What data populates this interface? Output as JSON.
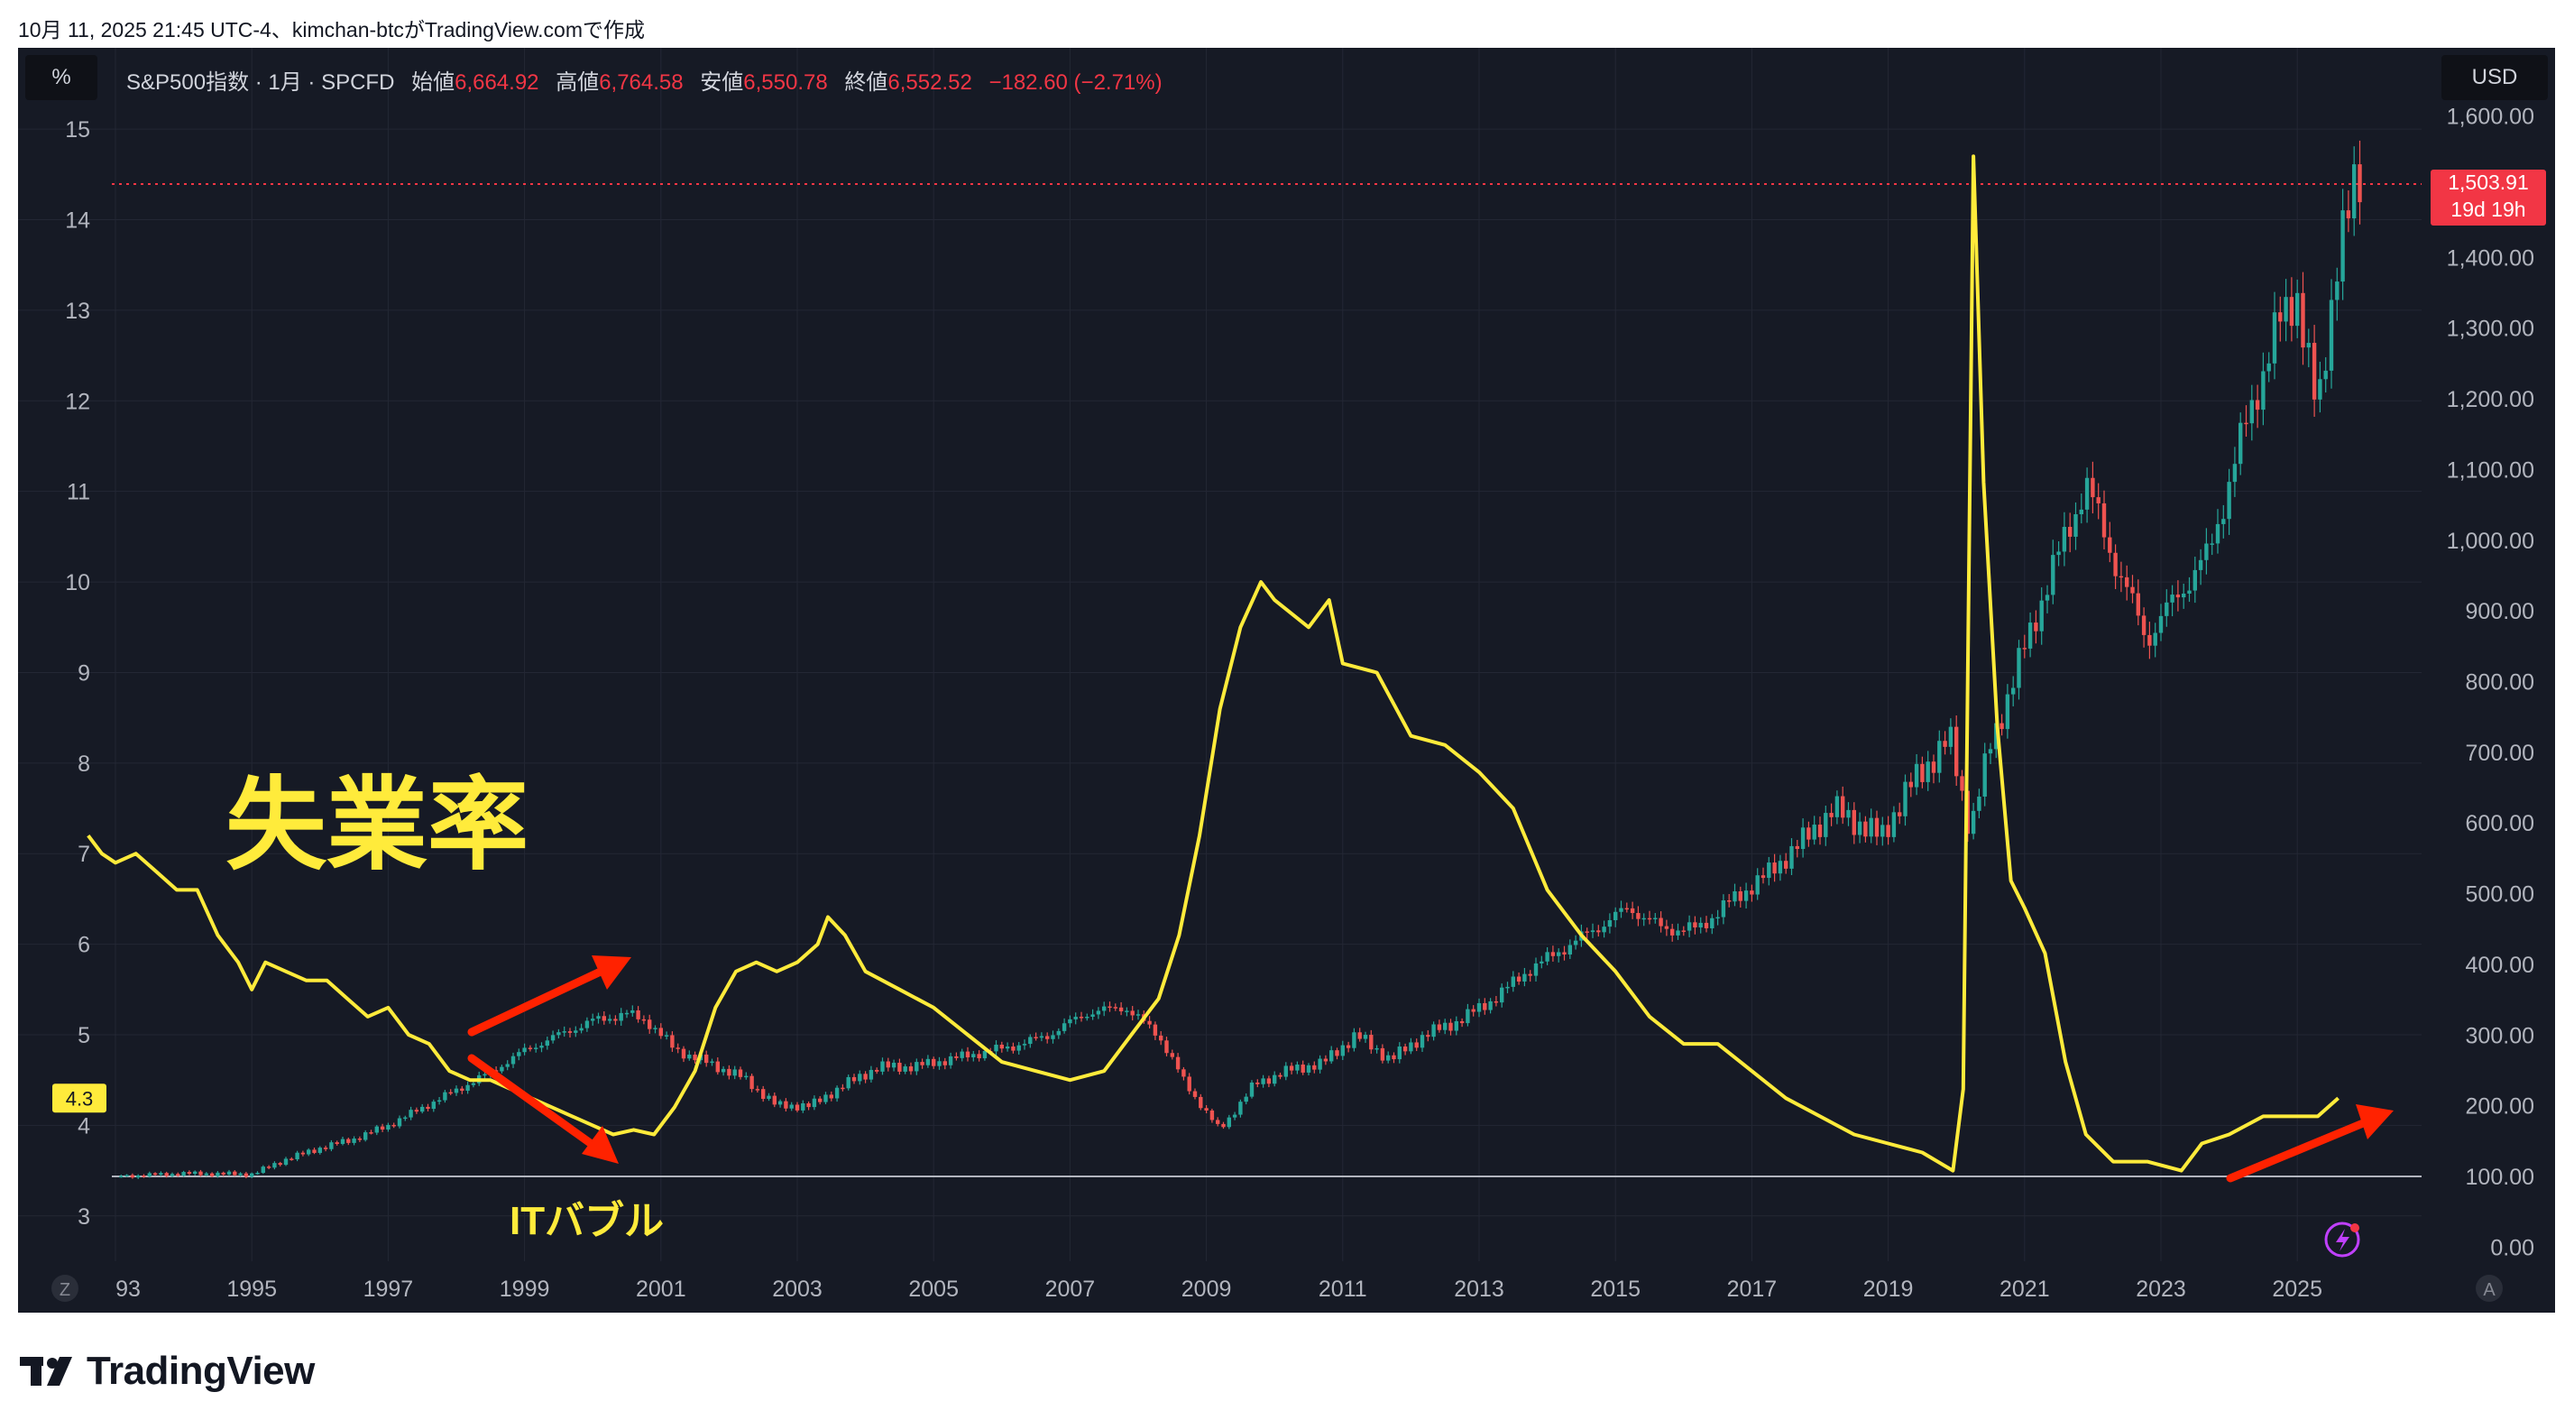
{
  "caption": "10月 11, 2025 21:45 UTC-4、kimchan-btcがTradingView.comで作成",
  "left_scale_button": "%",
  "right_scale_button": "USD",
  "legend": {
    "symbol": "S&P500指数 · 1月 · SPCFD",
    "open_label": "始値",
    "open_value": "6,664.92",
    "high_label": "高値",
    "high_value": "6,764.58",
    "low_label": "安値",
    "low_value": "6,550.78",
    "close_label": "終値",
    "close_value": "6,552.52",
    "change": "−182.60 (−2.71%)"
  },
  "price_badge": {
    "value": "1,503.91",
    "countdown": "19d 19h"
  },
  "unemployment_badge": "4.3",
  "annotations": {
    "unemployment_title": "失業率",
    "it_bubble": "ITバブル"
  },
  "corner_labels": {
    "left": "Z",
    "right": "A"
  },
  "logo_text": "TradingView",
  "colors": {
    "background": "#161a25",
    "unemployment_line": "#ffeb3b",
    "candle_up": "#26a69a",
    "candle_down": "#ef5350",
    "arrow": "#ff2200"
  },
  "icons": {
    "brand": "tradingview-logo-icon",
    "lightning": "lightning-icon"
  },
  "chart_data": {
    "type": "line",
    "x_ticks": [
      "93",
      "1995",
      "1997",
      "1999",
      "2001",
      "2003",
      "2005",
      "2007",
      "2009",
      "2011",
      "2013",
      "2015",
      "2017",
      "2019",
      "2021",
      "2023",
      "2025"
    ],
    "x_tick_years": [
      1993,
      1995,
      1997,
      1999,
      2001,
      2003,
      2005,
      2007,
      2009,
      2011,
      2013,
      2015,
      2017,
      2019,
      2021,
      2023,
      2025
    ],
    "left_axis": {
      "unit": "%",
      "ticks": [
        "3",
        "4",
        "5",
        "6",
        "7",
        "8",
        "9",
        "10",
        "11",
        "12",
        "13",
        "14",
        "15"
      ],
      "range": [
        2.5,
        15.3
      ]
    },
    "right_axis": {
      "unit": "USD",
      "ticks": [
        "0.00",
        "100.00",
        "200.00",
        "300.00",
        "400.00",
        "500.00",
        "600.00",
        "700.00",
        "800.00",
        "900.00",
        "1,000.00",
        "1,100.00",
        "1,200.00",
        "1,300.00",
        "1,400.00",
        "1,500.00",
        "1,600.00"
      ],
      "range": [
        -20,
        1620
      ]
    },
    "baseline_value": 100,
    "last_price": 1503.91,
    "series": [
      {
        "name": "失業率",
        "axis": "left",
        "points": [
          [
            1992.6,
            7.2
          ],
          [
            1992.8,
            7.0
          ],
          [
            1993.0,
            6.9
          ],
          [
            1993.3,
            7.0
          ],
          [
            1993.6,
            6.8
          ],
          [
            1993.9,
            6.6
          ],
          [
            1994.2,
            6.6
          ],
          [
            1994.5,
            6.1
          ],
          [
            1994.8,
            5.8
          ],
          [
            1995.0,
            5.5
          ],
          [
            1995.2,
            5.8
          ],
          [
            1995.5,
            5.7
          ],
          [
            1995.8,
            5.6
          ],
          [
            1996.1,
            5.6
          ],
          [
            1996.4,
            5.4
          ],
          [
            1996.7,
            5.2
          ],
          [
            1997.0,
            5.3
          ],
          [
            1997.3,
            5.0
          ],
          [
            1997.6,
            4.9
          ],
          [
            1997.9,
            4.6
          ],
          [
            1998.2,
            4.5
          ],
          [
            1998.5,
            4.5
          ],
          [
            1998.8,
            4.4
          ],
          [
            1999.1,
            4.3
          ],
          [
            1999.4,
            4.2
          ],
          [
            1999.7,
            4.1
          ],
          [
            2000.0,
            4.0
          ],
          [
            2000.3,
            3.9
          ],
          [
            2000.6,
            3.95
          ],
          [
            2000.9,
            3.9
          ],
          [
            2001.2,
            4.2
          ],
          [
            2001.5,
            4.6
          ],
          [
            2001.8,
            5.3
          ],
          [
            2002.1,
            5.7
          ],
          [
            2002.4,
            5.8
          ],
          [
            2002.7,
            5.7
          ],
          [
            2003.0,
            5.8
          ],
          [
            2003.3,
            6.0
          ],
          [
            2003.45,
            6.3
          ],
          [
            2003.7,
            6.1
          ],
          [
            2004.0,
            5.7
          ],
          [
            2004.5,
            5.5
          ],
          [
            2005.0,
            5.3
          ],
          [
            2005.5,
            5.0
          ],
          [
            2006.0,
            4.7
          ],
          [
            2006.5,
            4.6
          ],
          [
            2007.0,
            4.5
          ],
          [
            2007.5,
            4.6
          ],
          [
            2007.9,
            5.0
          ],
          [
            2008.3,
            5.4
          ],
          [
            2008.6,
            6.1
          ],
          [
            2008.9,
            7.2
          ],
          [
            2009.2,
            8.6
          ],
          [
            2009.5,
            9.5
          ],
          [
            2009.8,
            10.0
          ],
          [
            2010.0,
            9.8
          ],
          [
            2010.5,
            9.5
          ],
          [
            2010.8,
            9.8
          ],
          [
            2011.0,
            9.1
          ],
          [
            2011.5,
            9.0
          ],
          [
            2012.0,
            8.3
          ],
          [
            2012.5,
            8.2
          ],
          [
            2013.0,
            7.9
          ],
          [
            2013.5,
            7.5
          ],
          [
            2014.0,
            6.6
          ],
          [
            2014.5,
            6.1
          ],
          [
            2015.0,
            5.7
          ],
          [
            2015.5,
            5.2
          ],
          [
            2016.0,
            4.9
          ],
          [
            2016.5,
            4.9
          ],
          [
            2017.0,
            4.6
          ],
          [
            2017.5,
            4.3
          ],
          [
            2018.0,
            4.1
          ],
          [
            2018.5,
            3.9
          ],
          [
            2019.0,
            3.8
          ],
          [
            2019.5,
            3.7
          ],
          [
            2019.95,
            3.5
          ],
          [
            2020.1,
            4.4
          ],
          [
            2020.25,
            14.7
          ],
          [
            2020.4,
            11.1
          ],
          [
            2020.6,
            8.4
          ],
          [
            2020.8,
            6.7
          ],
          [
            2021.0,
            6.4
          ],
          [
            2021.3,
            5.9
          ],
          [
            2021.6,
            4.7
          ],
          [
            2021.9,
            3.9
          ],
          [
            2022.3,
            3.6
          ],
          [
            2022.8,
            3.6
          ],
          [
            2023.3,
            3.5
          ],
          [
            2023.6,
            3.8
          ],
          [
            2024.0,
            3.9
          ],
          [
            2024.5,
            4.1
          ],
          [
            2025.0,
            4.1
          ],
          [
            2025.3,
            4.1
          ],
          [
            2025.6,
            4.3
          ]
        ]
      },
      {
        "name": "S&P500指数",
        "axis": "right",
        "points": [
          [
            1993.0,
            100
          ],
          [
            1994.0,
            104
          ],
          [
            1995.0,
            103
          ],
          [
            1995.5,
            124
          ],
          [
            1996.0,
            140
          ],
          [
            1996.5,
            153
          ],
          [
            1997.0,
            172
          ],
          [
            1997.5,
            197
          ],
          [
            1998.0,
            222
          ],
          [
            1998.5,
            247
          ],
          [
            1999.0,
            278
          ],
          [
            1999.5,
            300
          ],
          [
            2000.0,
            320
          ],
          [
            2000.5,
            330
          ],
          [
            2000.8,
            320
          ],
          [
            2001.2,
            280
          ],
          [
            2001.7,
            260
          ],
          [
            2002.2,
            240
          ],
          [
            2002.7,
            200
          ],
          [
            2003.2,
            200
          ],
          [
            2003.7,
            230
          ],
          [
            2004.2,
            255
          ],
          [
            2004.7,
            255
          ],
          [
            2005.2,
            265
          ],
          [
            2005.7,
            275
          ],
          [
            2006.2,
            285
          ],
          [
            2006.7,
            300
          ],
          [
            2007.2,
            330
          ],
          [
            2007.8,
            340
          ],
          [
            2008.3,
            300
          ],
          [
            2008.7,
            230
          ],
          [
            2009.2,
            165
          ],
          [
            2009.7,
            230
          ],
          [
            2010.2,
            250
          ],
          [
            2010.7,
            260
          ],
          [
            2011.2,
            300
          ],
          [
            2011.7,
            265
          ],
          [
            2012.2,
            300
          ],
          [
            2012.7,
            320
          ],
          [
            2013.2,
            350
          ],
          [
            2013.7,
            390
          ],
          [
            2014.2,
            420
          ],
          [
            2014.7,
            450
          ],
          [
            2015.2,
            480
          ],
          [
            2015.7,
            450
          ],
          [
            2016.2,
            450
          ],
          [
            2016.7,
            490
          ],
          [
            2017.2,
            525
          ],
          [
            2017.7,
            570
          ],
          [
            2018.2,
            620
          ],
          [
            2018.9,
            580
          ],
          [
            2019.3,
            650
          ],
          [
            2019.9,
            720
          ],
          [
            2020.2,
            590
          ],
          [
            2020.5,
            710
          ],
          [
            2020.9,
            820
          ],
          [
            2021.3,
            930
          ],
          [
            2021.9,
            1080
          ],
          [
            2022.4,
            950
          ],
          [
            2022.8,
            860
          ],
          [
            2023.3,
            930
          ],
          [
            2023.7,
            980
          ],
          [
            2024.2,
            1150
          ],
          [
            2024.7,
            1300
          ],
          [
            2025.0,
            1350
          ],
          [
            2025.3,
            1170
          ],
          [
            2025.6,
            1420
          ],
          [
            2025.9,
            1503.91
          ]
        ]
      }
    ]
  }
}
